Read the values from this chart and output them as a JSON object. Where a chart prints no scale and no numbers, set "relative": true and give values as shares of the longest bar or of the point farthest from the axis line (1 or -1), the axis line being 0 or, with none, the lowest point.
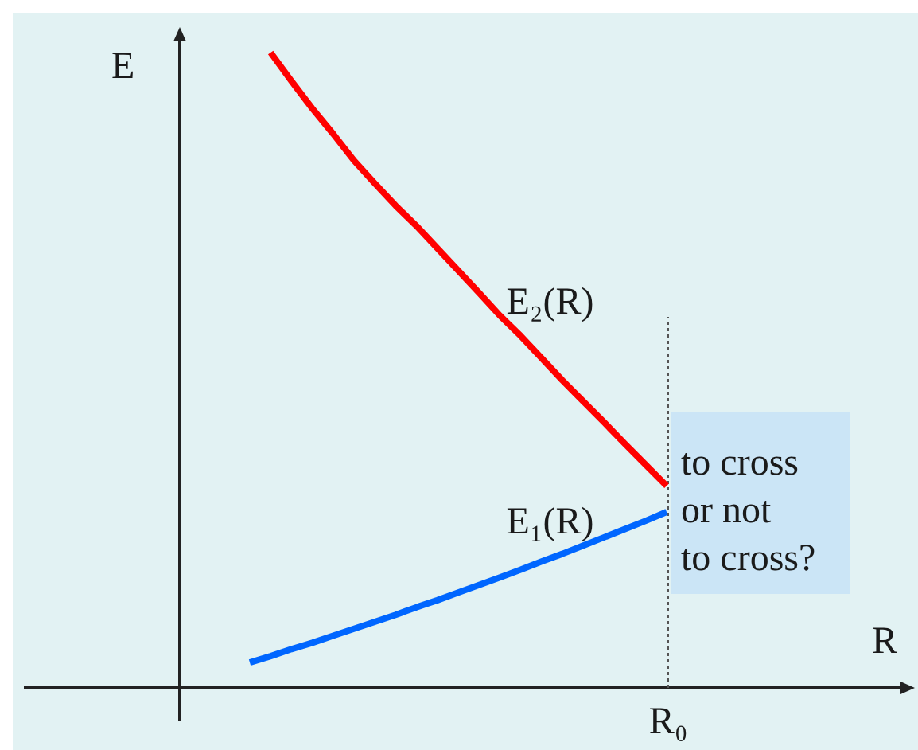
{
  "chart_data": {
    "type": "line",
    "relative": true,
    "ylabel": "E",
    "categories": [
      null,
      null,
      null,
      null,
      null,
      null,
      null,
      null,
      null,
      null,
      null,
      null,
      null,
      null,
      null,
      null,
      null,
      null,
      null,
      null,
      null
    ],
    "marker": "none",
    "series": [
      {
        "name": "E₂(R)",
        "color": "#ff0000",
        "values": [
          null,
          1,
          0.955,
          0.912,
          0.872,
          0.83,
          0.794,
          0.759,
          0.727,
          0.692,
          0.657,
          0.622,
          0.586,
          0.554,
          0.519,
          0.484,
          0.451,
          0.418,
          0.384,
          0.351,
          0.318
        ]
      },
      {
        "name": "E₁(R)",
        "color": "#0066ff",
        "values": [
          0.04,
          0.05,
          0.061,
          0.071,
          0.082,
          0.093,
          0.104,
          0.115,
          0.127,
          0.138,
          0.15,
          0.162,
          0.174,
          0.186,
          0.199,
          0.211,
          0.224,
          0.237,
          0.25,
          0.263,
          0.277
        ]
      }
    ],
    "ref_lines": [
      {
        "axis": "x",
        "value": "R₀",
        "color": "#555555",
        "line_style": "dotted"
      }
    ],
    "annotations": [
      "to cross\nor not\nto cross?",
      "R"
    ]
  }
}
